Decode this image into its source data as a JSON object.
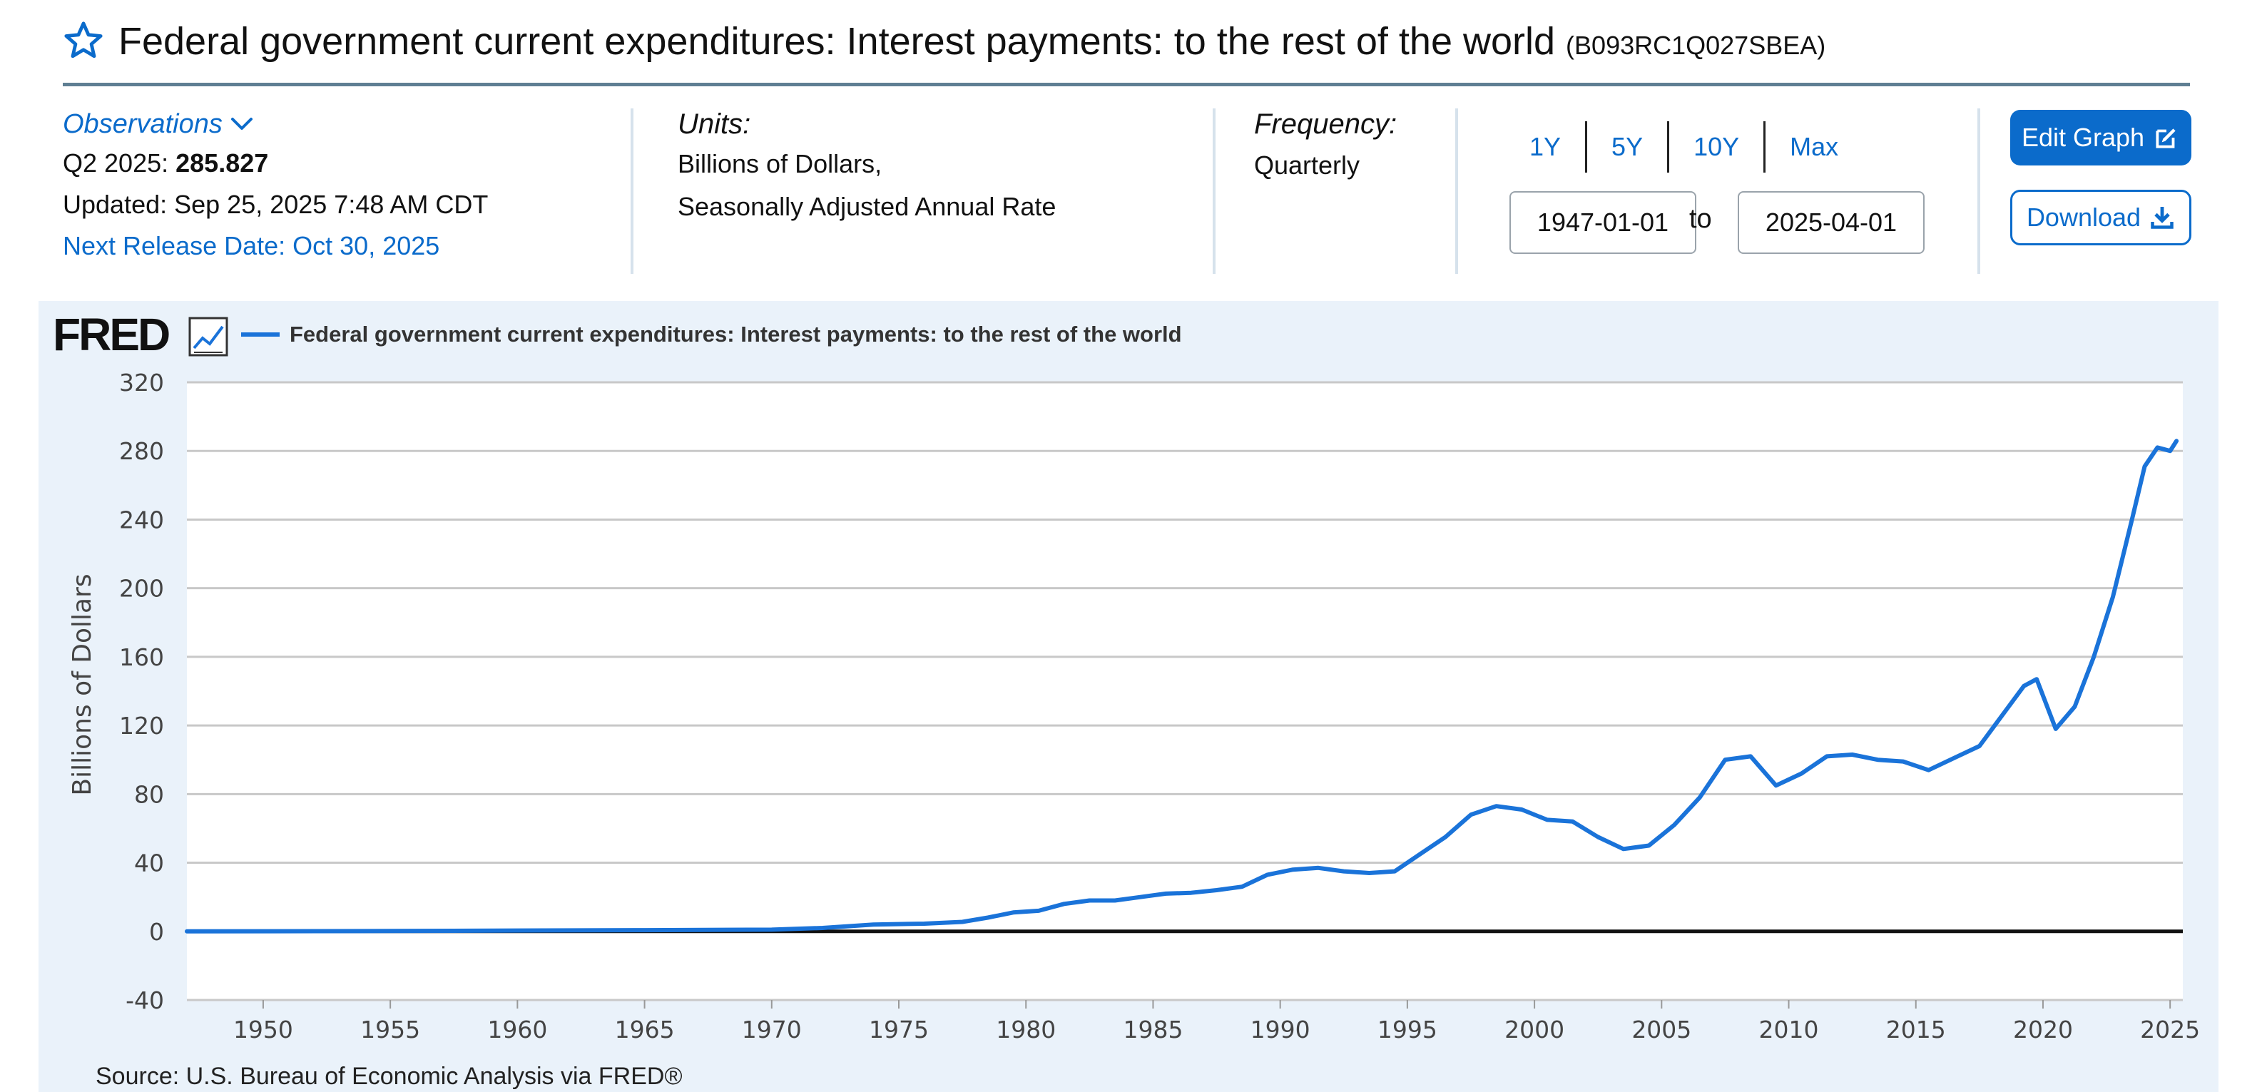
{
  "header": {
    "title": "Federal government current expenditures: Interest payments: to the rest of the world",
    "series_id": "(B093RC1Q027SBEA)",
    "star_icon": "star-icon"
  },
  "observations": {
    "label": "Observations",
    "period": "Q2 2025:",
    "value": "285.827",
    "updated": "Updated: Sep 25, 2025 7:48 AM CDT",
    "next_release": "Next Release Date: Oct 30, 2025"
  },
  "units": {
    "label": "Units:",
    "line1": "Billions of Dollars,",
    "line2": "Seasonally Adjusted Annual Rate"
  },
  "frequency": {
    "label": "Frequency:",
    "value": "Quarterly"
  },
  "range_buttons": [
    "1Y",
    "5Y",
    "10Y",
    "Max"
  ],
  "dates": {
    "start": "1947-01-01",
    "to": "to",
    "end": "2025-04-01"
  },
  "buttons": {
    "edit": "Edit Graph",
    "download": "Download"
  },
  "colors": {
    "accent": "#0b6bcb",
    "line": "#1a73d9",
    "panel": "#eaf2fa",
    "divider": "#5f7f93"
  },
  "chart_logo": "FRED",
  "source": "Source: U.S. Bureau of Economic Analysis via FRED®",
  "chart_data": {
    "type": "line",
    "title": "Federal government current expenditures: Interest payments: to the rest of the world",
    "ylabel": "Billions of Dollars",
    "xlabel": "",
    "ylim": [
      -40,
      320
    ],
    "xlim": [
      1947,
      2025.5
    ],
    "yticks": [
      -40,
      0,
      40,
      80,
      120,
      160,
      200,
      240,
      280,
      320
    ],
    "xticks": [
      1950,
      1955,
      1960,
      1965,
      1970,
      1975,
      1980,
      1985,
      1990,
      1995,
      2000,
      2005,
      2010,
      2015,
      2020,
      2025
    ],
    "legend": "top-left",
    "grid": true,
    "series": [
      {
        "name": "Federal government current expenditures: Interest payments: to the rest of the world",
        "x": [
          1947,
          1955,
          1960,
          1965,
          1970,
          1972,
          1974,
          1976,
          1977.5,
          1978.5,
          1979.5,
          1980.5,
          1981.5,
          1982.5,
          1983.5,
          1984.5,
          1985.5,
          1986.5,
          1987.5,
          1988.5,
          1989.5,
          1990.5,
          1991.5,
          1992.5,
          1993.5,
          1994.5,
          1995.5,
          1996.5,
          1997.5,
          1998.5,
          1999.5,
          2000.5,
          2001.5,
          2002.5,
          2003.5,
          2004.5,
          2005.5,
          2006.5,
          2007.5,
          2008.5,
          2009.5,
          2010.5,
          2011.5,
          2012.5,
          2013.5,
          2014.5,
          2015.5,
          2016.5,
          2017.5,
          2018.5,
          2019.25,
          2019.75,
          2020.5,
          2021.25,
          2022.0,
          2022.75,
          2023.5,
          2024.0,
          2024.5,
          2025.0,
          2025.25
        ],
        "values": [
          0,
          0.2,
          0.5,
          0.7,
          1.0,
          2.0,
          4.0,
          4.5,
          5.5,
          8,
          11,
          12,
          16,
          18,
          18,
          20,
          22,
          22.5,
          24,
          26,
          33,
          36,
          37,
          35,
          34,
          35,
          45,
          55,
          68,
          73,
          71,
          65,
          64,
          55,
          48,
          50,
          62,
          78,
          100,
          102,
          85,
          92,
          102,
          103,
          100,
          99,
          94,
          101,
          108,
          128,
          143,
          147,
          118,
          131,
          160,
          195,
          240,
          271,
          282,
          280,
          285.8
        ]
      }
    ]
  }
}
